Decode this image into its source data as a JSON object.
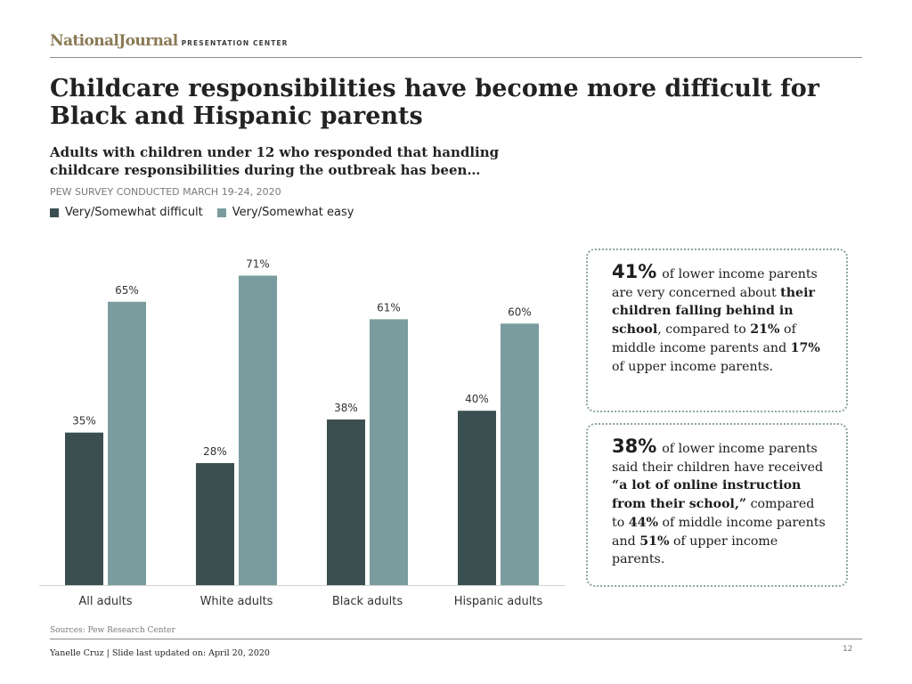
{
  "header": {
    "brand_logo": "NationalJournal",
    "brand_sub": "PRESENTATION CENTER"
  },
  "title": "Childcare responsibilities have become more difficult for Black and Hispanic parents",
  "subtitle": "Adults with children under 12 who responded that handling childcare responsibilities during the outbreak has been…",
  "survey_note": "PEW SURVEY CONDUCTED MARCH 19-24, 2020",
  "colors": {
    "dark": "#3b4f51",
    "light": "#7a9c9f",
    "callout_border": "#8ea5a6"
  },
  "chart_data": {
    "type": "bar",
    "categories": [
      "All adults",
      "White adults",
      "Black adults",
      "Hispanic adults"
    ],
    "series": [
      {
        "name": "Very/Somewhat difficult",
        "values": [
          35,
          28,
          38,
          40
        ]
      },
      {
        "name": "Very/Somewhat easy",
        "values": [
          65,
          71,
          61,
          60
        ]
      }
    ],
    "value_suffix": "%",
    "ylim": [
      0,
      76
    ],
    "legend_position": "top-left",
    "grid": false
  },
  "callouts": [
    {
      "stat": "41%",
      "parts": [
        {
          "t": "of lower income parents are very concerned about "
        },
        {
          "t": "their children falling behind in school",
          "b": true
        },
        {
          "t": ", compared to "
        },
        {
          "t": "21%",
          "b": true
        },
        {
          "t": " of middle income parents and "
        },
        {
          "t": "17%",
          "b": true
        },
        {
          "t": " of upper income parents."
        }
      ]
    },
    {
      "stat": "38%",
      "parts": [
        {
          "t": "of lower income parents said their children have received "
        },
        {
          "t": "“a lot of online instruction from their school,”",
          "b": true
        },
        {
          "t": " compared to "
        },
        {
          "t": "44%",
          "b": true
        },
        {
          "t": " of middle income parents and "
        },
        {
          "t": "51%",
          "b": true
        },
        {
          "t": " of upper income parents."
        }
      ]
    }
  ],
  "footer": {
    "sources": "Sources: Pew Research Center",
    "author": "Yanelle Cruz | Slide last updated on: April 20, 2020",
    "page_number": "12"
  }
}
